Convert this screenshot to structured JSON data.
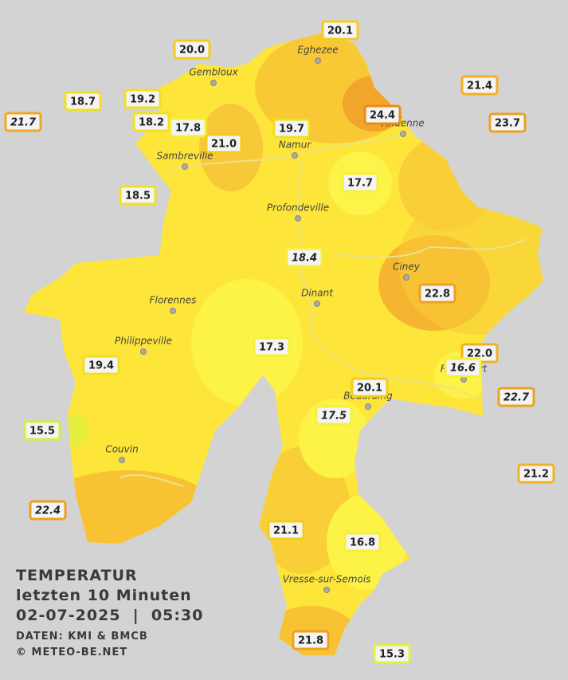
{
  "cities": [
    "Eghezee",
    "Gembloux",
    "Andenne",
    "Namur",
    "Sambreville",
    "Profondeville",
    "Ciney",
    "Dinant",
    "Florennes",
    "Philippeville",
    "Rochefort",
    "Beauraing",
    "Couvin",
    "Vresse-sur-Semois"
  ],
  "stations": [
    {
      "label": "20.1",
      "color": "#f3cc1c"
    },
    {
      "label": "20.0",
      "color": "#f3cc1c"
    },
    {
      "label": "18.7",
      "color": "#f0e020"
    },
    {
      "label": "19.2",
      "color": "#f0e020"
    },
    {
      "label": "21.7",
      "color": "#f2a623",
      "italic": true
    },
    {
      "label": "18.2",
      "color": "#f0e020"
    },
    {
      "label": "17.8",
      "color": "#f5f03a"
    },
    {
      "label": "21.0",
      "color": "#f3cc1c"
    },
    {
      "label": "19.7",
      "color": "#f0e020"
    },
    {
      "label": "24.4",
      "color": "#e88d18"
    },
    {
      "label": "21.4",
      "color": "#f2b023"
    },
    {
      "label": "23.7",
      "color": "#eea020"
    },
    {
      "label": "18.5",
      "color": "#f0e020"
    },
    {
      "label": "17.7",
      "color": "#f5f03a"
    },
    {
      "label": "18.4",
      "color": "#f5f03a",
      "italic": true
    },
    {
      "label": "22.8",
      "color": "#eea020"
    },
    {
      "label": "17.3",
      "color": "#f5f03a"
    },
    {
      "label": "19.4",
      "color": "#f0e020"
    },
    {
      "label": "22.0",
      "color": "#f2b023"
    },
    {
      "label": "16.6",
      "color": "#f5f03a",
      "italic": true
    },
    {
      "label": "20.1",
      "color": "#f3cc1c"
    },
    {
      "label": "22.7",
      "color": "#eea020",
      "italic": true
    },
    {
      "label": "17.5",
      "color": "#f5f03a",
      "italic": true
    },
    {
      "label": "15.5",
      "color": "#d8ee3a"
    },
    {
      "label": "21.2",
      "color": "#f2b023"
    },
    {
      "label": "22.4",
      "color": "#eea020",
      "italic": true
    },
    {
      "label": "21.1",
      "color": "#f3cc1c"
    },
    {
      "label": "16.8",
      "color": "#f5f03a"
    },
    {
      "label": "21.8",
      "color": "#eea020"
    },
    {
      "label": "15.3",
      "color": "#e3f23a"
    }
  ],
  "caption": {
    "title": "TEMPERATUR",
    "period": "letzten 10 Minuten",
    "datetime": "02-07-2025  |  05:30",
    "source": "DATEN: KMI & BMCB",
    "site": "© METEO-BE.NET"
  }
}
